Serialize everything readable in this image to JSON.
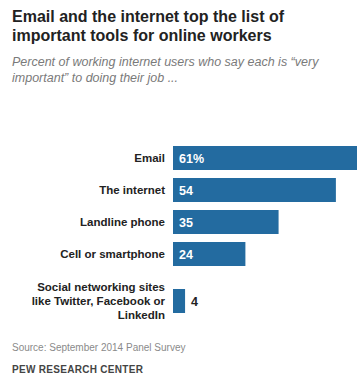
{
  "chart_data": {
    "type": "bar",
    "orientation": "horizontal",
    "title": "Email and the internet top the list of important tools for online workers",
    "subtitle": "Percent of working internet users who say each is “very important” to doing their job ...",
    "categories": [
      "Email",
      "The internet",
      "Landline phone",
      "Cell or smartphone",
      "Social networking sites like Twitter, Facebook or LinkedIn"
    ],
    "values": [
      61,
      54,
      35,
      24,
      4
    ],
    "value_labels": [
      "61%",
      "54",
      "35",
      "24",
      "4"
    ],
    "data_labels": true,
    "color": "#236ba0",
    "xlim": [
      0,
      61
    ],
    "tick_labels": false,
    "grid": false,
    "source": "Source: September 2014 Panel Survey",
    "credit": "PEW RESEARCH CENTER"
  }
}
